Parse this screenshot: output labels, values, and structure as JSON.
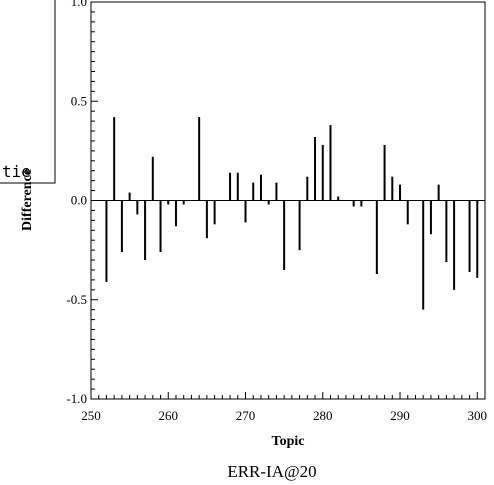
{
  "chart_data": {
    "type": "bar",
    "xlabel": "Topic",
    "ylabel": "Difference",
    "caption": "ERR-IA@20",
    "overlay_text": "tie",
    "xlim": [
      250,
      301
    ],
    "ylim": [
      -1.0,
      1.0
    ],
    "x_ticks": [
      "250",
      "260",
      "270",
      "280",
      "290",
      "300"
    ],
    "y_ticks": [
      "-1.0",
      "-0.5",
      "0.0",
      "0.5",
      "1.0"
    ],
    "x": [
      252,
      253,
      254,
      255,
      256,
      257,
      258,
      259,
      260,
      261,
      262,
      263,
      264,
      265,
      266,
      267,
      268,
      269,
      270,
      271,
      272,
      273,
      274,
      275,
      276,
      277,
      278,
      279,
      280,
      281,
      282,
      283,
      284,
      285,
      286,
      287,
      288,
      289,
      290,
      291,
      292,
      293,
      294,
      295,
      296,
      297,
      298,
      299,
      300
    ],
    "values": [
      -0.41,
      0.42,
      -0.26,
      0.04,
      -0.07,
      -0.3,
      0.22,
      -0.26,
      -0.02,
      -0.13,
      -0.02,
      0.0,
      0.42,
      -0.19,
      -0.12,
      0.0,
      0.14,
      0.14,
      -0.11,
      0.09,
      0.13,
      -0.02,
      0.09,
      -0.35,
      0.0,
      -0.25,
      0.12,
      0.32,
      0.28,
      0.38,
      0.02,
      0.0,
      -0.03,
      -0.03,
      0.0,
      -0.37,
      0.28,
      0.12,
      0.08,
      -0.12,
      0.0,
      -0.55,
      -0.17,
      0.08,
      -0.31,
      -0.45,
      0.0,
      -0.36,
      -0.39
    ]
  }
}
